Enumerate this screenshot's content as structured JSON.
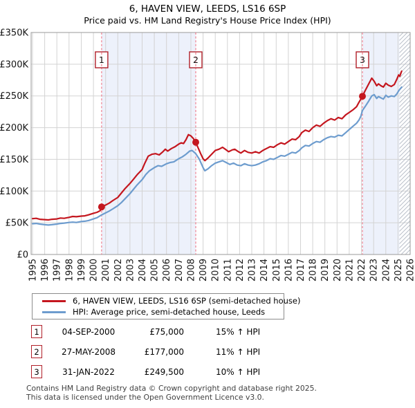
{
  "title": "6, HAVEN VIEW, LEEDS, LS16 6SP",
  "subtitle": "Price paid vs. HM Land Registry's House Price Index (HPI)",
  "chart_data": {
    "type": "line",
    "x_axis": {
      "min": 1995,
      "max": 2026,
      "tick_labels": [
        "1995",
        "1996",
        "1997",
        "1998",
        "1999",
        "2000",
        "2001",
        "2002",
        "2003",
        "2004",
        "2005",
        "2006",
        "2007",
        "2008",
        "2009",
        "2010",
        "2011",
        "2012",
        "2013",
        "2014",
        "2015",
        "2016",
        "2017",
        "2018",
        "2019",
        "2020",
        "2021",
        "2022",
        "2023",
        "2024",
        "2025",
        "2026"
      ]
    },
    "y_axis": {
      "min_gbp": 0,
      "max_gbp": 350000,
      "tick_step_gbp": 50000,
      "tick_labels": [
        "£0",
        "£50K",
        "£100K",
        "£150K",
        "£200K",
        "£250K",
        "£300K",
        "£350K"
      ]
    },
    "grid": true,
    "colors": {
      "gridline": "#d3d3d3",
      "plot_border": "#9a9a9a",
      "sale_dashed_line": "#ef7585",
      "shaded_region": "#edf1fb",
      "hatch_line": "#b9bfc9",
      "marker_box_border": "#b01e28"
    },
    "series": [
      {
        "name": "6, HAVEN VIEW, LEEDS, LS16 6SP (semi-detached house)",
        "color": "#c4161e",
        "unit": "GBP_thousands",
        "points": [
          [
            1995.0,
            56.5
          ],
          [
            1995.3,
            57
          ],
          [
            1995.6,
            55.5
          ],
          [
            1996.0,
            55
          ],
          [
            1996.3,
            54.5
          ],
          [
            1996.6,
            55.5
          ],
          [
            1997.0,
            56
          ],
          [
            1997.3,
            57.5
          ],
          [
            1997.6,
            57
          ],
          [
            1998.0,
            58.5
          ],
          [
            1998.3,
            60
          ],
          [
            1998.6,
            59.5
          ],
          [
            1999.0,
            60.5
          ],
          [
            1999.3,
            61
          ],
          [
            1999.6,
            62.5
          ],
          [
            2000.0,
            65
          ],
          [
            2000.3,
            66.5
          ],
          [
            2000.55,
            69
          ],
          [
            2000.67,
            75
          ],
          [
            2001.0,
            78
          ],
          [
            2001.3,
            81
          ],
          [
            2001.6,
            85
          ],
          [
            2002.0,
            90
          ],
          [
            2002.3,
            97
          ],
          [
            2002.6,
            104
          ],
          [
            2003.0,
            112
          ],
          [
            2003.3,
            119
          ],
          [
            2003.6,
            126
          ],
          [
            2004.0,
            134
          ],
          [
            2004.2,
            143
          ],
          [
            2004.5,
            155
          ],
          [
            2004.8,
            158
          ],
          [
            2005.1,
            159
          ],
          [
            2005.4,
            157
          ],
          [
            2005.7,
            162
          ],
          [
            2005.9,
            166
          ],
          [
            2006.1,
            163
          ],
          [
            2006.4,
            167
          ],
          [
            2006.7,
            170
          ],
          [
            2007.0,
            174
          ],
          [
            2007.2,
            176
          ],
          [
            2007.4,
            175
          ],
          [
            2007.6,
            181
          ],
          [
            2007.8,
            189
          ],
          [
            2008.0,
            187
          ],
          [
            2008.2,
            183
          ],
          [
            2008.4,
            177
          ],
          [
            2008.6,
            168
          ],
          [
            2008.8,
            159
          ],
          [
            2009.0,
            151
          ],
          [
            2009.15,
            148
          ],
          [
            2009.4,
            152
          ],
          [
            2009.7,
            158
          ],
          [
            2010.0,
            164
          ],
          [
            2010.3,
            166
          ],
          [
            2010.6,
            169
          ],
          [
            2010.9,
            165
          ],
          [
            2011.1,
            162
          ],
          [
            2011.4,
            165
          ],
          [
            2011.6,
            166
          ],
          [
            2011.9,
            162
          ],
          [
            2012.1,
            160
          ],
          [
            2012.4,
            164
          ],
          [
            2012.7,
            161
          ],
          [
            2013.0,
            160
          ],
          [
            2013.3,
            162
          ],
          [
            2013.6,
            160
          ],
          [
            2013.9,
            164
          ],
          [
            2014.2,
            167
          ],
          [
            2014.5,
            170
          ],
          [
            2014.8,
            169
          ],
          [
            2015.1,
            173
          ],
          [
            2015.4,
            176
          ],
          [
            2015.7,
            174
          ],
          [
            2016.0,
            178
          ],
          [
            2016.3,
            182
          ],
          [
            2016.6,
            181
          ],
          [
            2016.9,
            186
          ],
          [
            2017.1,
            192
          ],
          [
            2017.4,
            196
          ],
          [
            2017.7,
            194
          ],
          [
            2018.0,
            200
          ],
          [
            2018.3,
            204
          ],
          [
            2018.6,
            202
          ],
          [
            2018.9,
            207
          ],
          [
            2019.2,
            211
          ],
          [
            2019.5,
            214
          ],
          [
            2019.8,
            212
          ],
          [
            2020.1,
            216
          ],
          [
            2020.4,
            214
          ],
          [
            2020.7,
            220
          ],
          [
            2021.0,
            224
          ],
          [
            2021.3,
            228
          ],
          [
            2021.6,
            233
          ],
          [
            2021.8,
            240
          ],
          [
            2021.95,
            245
          ],
          [
            2022.08,
            249.5
          ],
          [
            2022.3,
            258
          ],
          [
            2022.6,
            269
          ],
          [
            2022.85,
            278
          ],
          [
            2023.05,
            273
          ],
          [
            2023.25,
            266
          ],
          [
            2023.4,
            269
          ],
          [
            2023.6,
            266
          ],
          [
            2023.8,
            264
          ],
          [
            2024.0,
            270
          ],
          [
            2024.2,
            267
          ],
          [
            2024.45,
            265
          ],
          [
            2024.7,
            268
          ],
          [
            2024.9,
            276
          ],
          [
            2025.05,
            283
          ],
          [
            2025.15,
            281
          ],
          [
            2025.3,
            289
          ]
        ]
      },
      {
        "name": "HPI: Average price, semi-detached house, Leeds",
        "color": "#6d9cce",
        "unit": "GBP_thousands",
        "points": [
          [
            1995.0,
            48.5
          ],
          [
            1995.3,
            49
          ],
          [
            1995.6,
            48
          ],
          [
            1996.0,
            47
          ],
          [
            1996.3,
            46.5
          ],
          [
            1996.6,
            47
          ],
          [
            1997.0,
            48
          ],
          [
            1997.3,
            49
          ],
          [
            1997.6,
            49.5
          ],
          [
            1998.0,
            50.5
          ],
          [
            1998.3,
            51
          ],
          [
            1998.6,
            50.5
          ],
          [
            1999.0,
            52
          ],
          [
            1999.3,
            52.5
          ],
          [
            1999.6,
            53.5
          ],
          [
            2000.0,
            56
          ],
          [
            2000.3,
            58
          ],
          [
            2000.67,
            62.5
          ],
          [
            2001.0,
            65.5
          ],
          [
            2001.3,
            68.5
          ],
          [
            2001.6,
            72
          ],
          [
            2002.0,
            77
          ],
          [
            2002.3,
            82
          ],
          [
            2002.6,
            88
          ],
          [
            2003.0,
            96
          ],
          [
            2003.3,
            103
          ],
          [
            2003.6,
            110
          ],
          [
            2004.0,
            118
          ],
          [
            2004.3,
            126
          ],
          [
            2004.6,
            132
          ],
          [
            2005.0,
            137
          ],
          [
            2005.3,
            140
          ],
          [
            2005.6,
            139
          ],
          [
            2006.0,
            143
          ],
          [
            2006.3,
            145
          ],
          [
            2006.6,
            146
          ],
          [
            2007.0,
            151
          ],
          [
            2007.3,
            154
          ],
          [
            2007.6,
            158
          ],
          [
            2007.9,
            163
          ],
          [
            2008.1,
            164
          ],
          [
            2008.4,
            159
          ],
          [
            2008.7,
            150
          ],
          [
            2009.0,
            137
          ],
          [
            2009.15,
            132
          ],
          [
            2009.4,
            135
          ],
          [
            2009.7,
            140
          ],
          [
            2010.0,
            144
          ],
          [
            2010.3,
            146
          ],
          [
            2010.6,
            148
          ],
          [
            2010.9,
            145
          ],
          [
            2011.2,
            142
          ],
          [
            2011.5,
            144
          ],
          [
            2011.8,
            141
          ],
          [
            2012.1,
            140
          ],
          [
            2012.4,
            143
          ],
          [
            2012.7,
            141
          ],
          [
            2013.0,
            140
          ],
          [
            2013.3,
            141
          ],
          [
            2013.6,
            143
          ],
          [
            2013.9,
            146
          ],
          [
            2014.2,
            148
          ],
          [
            2014.5,
            151
          ],
          [
            2014.8,
            150
          ],
          [
            2015.1,
            153
          ],
          [
            2015.4,
            156
          ],
          [
            2015.7,
            155
          ],
          [
            2016.0,
            158
          ],
          [
            2016.3,
            161
          ],
          [
            2016.6,
            160
          ],
          [
            2016.9,
            164
          ],
          [
            2017.1,
            168
          ],
          [
            2017.4,
            172
          ],
          [
            2017.7,
            171
          ],
          [
            2018.0,
            175
          ],
          [
            2018.3,
            178
          ],
          [
            2018.6,
            177
          ],
          [
            2018.9,
            181
          ],
          [
            2019.2,
            184
          ],
          [
            2019.5,
            186
          ],
          [
            2019.8,
            185
          ],
          [
            2020.1,
            188
          ],
          [
            2020.4,
            187
          ],
          [
            2020.7,
            192
          ],
          [
            2021.0,
            197
          ],
          [
            2021.3,
            202
          ],
          [
            2021.6,
            207
          ],
          [
            2021.8,
            212
          ],
          [
            2021.95,
            218
          ],
          [
            2022.08,
            227
          ],
          [
            2022.3,
            233
          ],
          [
            2022.6,
            242
          ],
          [
            2022.85,
            250
          ],
          [
            2023.05,
            252
          ],
          [
            2023.25,
            246
          ],
          [
            2023.4,
            249
          ],
          [
            2023.6,
            247
          ],
          [
            2023.8,
            245
          ],
          [
            2024.0,
            251
          ],
          [
            2024.2,
            248
          ],
          [
            2024.45,
            250
          ],
          [
            2024.7,
            249
          ],
          [
            2024.9,
            253
          ],
          [
            2025.05,
            258
          ],
          [
            2025.3,
            264
          ]
        ]
      }
    ],
    "sales": [
      {
        "label": "1",
        "date": "04-SEP-2000",
        "year": 2000.67,
        "price_gbp": 75000,
        "vs_hpi": "15% ↑ HPI"
      },
      {
        "label": "2",
        "date": "27-MAY-2008",
        "year": 2008.4,
        "price_gbp": 177000,
        "vs_hpi": "11% ↑ HPI"
      },
      {
        "label": "3",
        "date": "31-JAN-2022",
        "year": 2022.08,
        "price_gbp": 249500,
        "vs_hpi": "10% ↑ HPI"
      }
    ],
    "shaded_regions": [
      [
        2000.67,
        2008.41
      ],
      [
        2022.08,
        2025.12
      ]
    ],
    "hatch_region": [
      2025.12,
      2026
    ]
  },
  "table": {
    "rows": [
      {
        "num": "1",
        "date": "04-SEP-2000",
        "price": "£75,000",
        "hpi": "15% ↑ HPI"
      },
      {
        "num": "2",
        "date": "27-MAY-2008",
        "price": "£177,000",
        "hpi": "11% ↑ HPI"
      },
      {
        "num": "3",
        "date": "31-JAN-2022",
        "price": "£249,500",
        "hpi": "10% ↑ HPI"
      }
    ]
  },
  "footer": {
    "line1": "Contains HM Land Registry data © Crown copyright and database right 2025.",
    "line2": "This data is licensed under the Open Government Licence v3.0."
  }
}
